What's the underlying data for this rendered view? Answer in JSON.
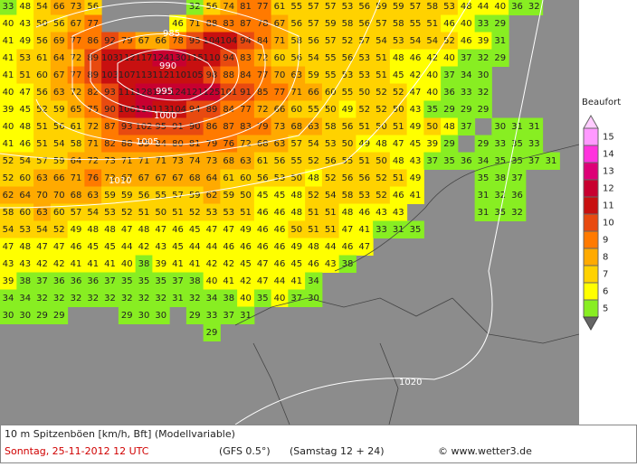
{
  "map": {
    "grid": [
      [
        33,
        48,
        54,
        66,
        73,
        56,
        null,
        null,
        null,
        null,
        null,
        32,
        56,
        74,
        81,
        77,
        61,
        55,
        57,
        57,
        53,
        56,
        59,
        59,
        57,
        58,
        53,
        48,
        44,
        40,
        36,
        32
      ],
      [
        40,
        43,
        50,
        56,
        67,
        77,
        null,
        null,
        null,
        null,
        46,
        71,
        88,
        83,
        87,
        78,
        67,
        56,
        57,
        59,
        58,
        56,
        57,
        58,
        55,
        51,
        46,
        40,
        33,
        29
      ],
      [
        41,
        49,
        56,
        69,
        77,
        86,
        92,
        79,
        67,
        66,
        78,
        95,
        104,
        104,
        94,
        84,
        71,
        58,
        56,
        57,
        52,
        57,
        54,
        53,
        54,
        54,
        52,
        46,
        39,
        31
      ],
      [
        41,
        53,
        61,
        64,
        72,
        89,
        103,
        112,
        117,
        124,
        130,
        115,
        110,
        94,
        83,
        72,
        60,
        56,
        54,
        55,
        56,
        53,
        51,
        48,
        46,
        42,
        40,
        37,
        32,
        29
      ],
      [
        41,
        51,
        60,
        67,
        77,
        89,
        103,
        107,
        113,
        112,
        110,
        105,
        98,
        88,
        84,
        77,
        70,
        63,
        59,
        55,
        53,
        53,
        51,
        45,
        42,
        40,
        37,
        34,
        30
      ],
      [
        40,
        47,
        56,
        63,
        72,
        82,
        93,
        111,
        128,
        123,
        124,
        121,
        125,
        101,
        91,
        85,
        77,
        71,
        66,
        60,
        55,
        50,
        52,
        52,
        47,
        40,
        36,
        33,
        32
      ],
      [
        39,
        45,
        52,
        59,
        65,
        75,
        90,
        106,
        119,
        113,
        104,
        94,
        89,
        84,
        77,
        72,
        66,
        60,
        55,
        50,
        49,
        52,
        52,
        50,
        43,
        35,
        29,
        29,
        29
      ],
      [
        40,
        48,
        51,
        56,
        61,
        72,
        87,
        93,
        102,
        95,
        91,
        90,
        86,
        87,
        83,
        79,
        73,
        68,
        63,
        58,
        56,
        51,
        50,
        51,
        49,
        50,
        48,
        37,
        null,
        30,
        31,
        31
      ],
      [
        41,
        46,
        51,
        54,
        58,
        71,
        82,
        88,
        85,
        84,
        80,
        81,
        79,
        76,
        72,
        68,
        63,
        57,
        54,
        53,
        50,
        49,
        48,
        47,
        45,
        39,
        29,
        null,
        29,
        33,
        35,
        33
      ],
      [
        52,
        54,
        57,
        59,
        64,
        72,
        73,
        71,
        71,
        71,
        73,
        74,
        73,
        68,
        63,
        61,
        56,
        55,
        52,
        56,
        55,
        51,
        50,
        48,
        43,
        37,
        35,
        36,
        34,
        35,
        35,
        37,
        31
      ],
      [
        52,
        60,
        63,
        66,
        71,
        76,
        72,
        67,
        67,
        67,
        67,
        68,
        64,
        61,
        60,
        56,
        53,
        50,
        48,
        52,
        56,
        56,
        52,
        51,
        49,
        null,
        null,
        null,
        35,
        38,
        37
      ],
      [
        62,
        64,
        70,
        70,
        68,
        63,
        59,
        59,
        56,
        55,
        57,
        59,
        62,
        59,
        50,
        45,
        45,
        48,
        52,
        54,
        58,
        53,
        52,
        46,
        41,
        null,
        null,
        null,
        31,
        32,
        36
      ],
      [
        58,
        60,
        63,
        60,
        57,
        54,
        53,
        52,
        51,
        50,
        51,
        52,
        53,
        53,
        51,
        46,
        46,
        48,
        51,
        51,
        48,
        46,
        43,
        43,
        null,
        null,
        null,
        null,
        31,
        35,
        32
      ],
      [
        54,
        53,
        54,
        52,
        49,
        48,
        48,
        47,
        48,
        47,
        46,
        45,
        47,
        47,
        49,
        46,
        46,
        50,
        51,
        51,
        47,
        41,
        33,
        31,
        35
      ],
      [
        47,
        48,
        47,
        47,
        46,
        45,
        45,
        44,
        42,
        43,
        45,
        44,
        44,
        46,
        46,
        46,
        46,
        49,
        48,
        44,
        46,
        47
      ],
      [
        43,
        43,
        42,
        42,
        41,
        41,
        41,
        40,
        38,
        39,
        41,
        41,
        42,
        42,
        45,
        47,
        46,
        45,
        46,
        43,
        38
      ],
      [
        39,
        38,
        37,
        36,
        36,
        36,
        37,
        35,
        35,
        35,
        37,
        38,
        40,
        41,
        42,
        47,
        44,
        41,
        34
      ],
      [
        34,
        34,
        32,
        32,
        32,
        32,
        32,
        32,
        32,
        32,
        31,
        32,
        34,
        38,
        40,
        35,
        40,
        37,
        30
      ],
      [
        30,
        30,
        29,
        29,
        null,
        null,
        null,
        29,
        30,
        30,
        null,
        29,
        33,
        37,
        31
      ],
      [
        null,
        null,
        null,
        null,
        null,
        null,
        null,
        null,
        null,
        null,
        null,
        null,
        29
      ]
    ],
    "isobars": [
      985,
      990,
      995,
      1000,
      1005,
      1010,
      1020
    ]
  },
  "legend": {
    "title": "Beaufort",
    "labels": [
      15,
      14,
      13,
      12,
      11,
      10,
      9,
      8,
      7,
      6,
      5
    ],
    "colors": [
      "#ff99ff",
      "#ff33dd",
      "#dd0077",
      "#c80030",
      "#c81010",
      "#e84a10",
      "#ff7a00",
      "#ffaa00",
      "#ffd200",
      "#ffff00",
      "#88ee22"
    ]
  },
  "footer": {
    "line1": "10 m Spitzenböen [km/h, Bft] (Modellvariable)",
    "date": "Sonntag, 25-11-2012  12 UTC",
    "model": "(GFS 0.5°)",
    "run": "(Samstag 12 + 24)",
    "credit": "© www.wetter3.de"
  }
}
